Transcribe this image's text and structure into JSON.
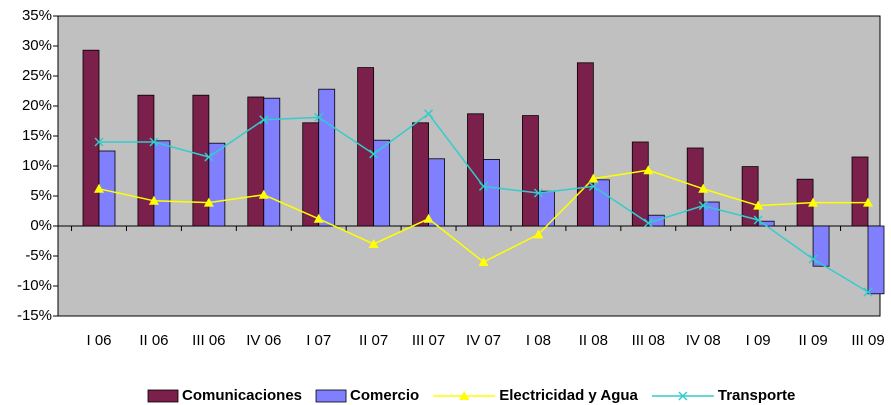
{
  "chart_data": {
    "type": "bar_line",
    "categories": [
      "I 06",
      "II 06",
      "III 06",
      "IV 06",
      "I 07",
      "II 07",
      "III 07",
      "IV 07",
      "I 08",
      "II 08",
      "III 08",
      "IV 08",
      "I 09",
      "II 09",
      "III 09"
    ],
    "series": [
      {
        "name": "Comunicaciones",
        "type": "bar",
        "color": "#7b1f4b",
        "values": [
          29.3,
          21.8,
          21.8,
          21.5,
          17.2,
          26.4,
          17.2,
          18.7,
          18.4,
          27.2,
          14.0,
          13.0,
          9.9,
          7.8,
          11.5
        ]
      },
      {
        "name": "Comercio",
        "type": "bar",
        "color": "#8080ff",
        "values": [
          12.5,
          14.2,
          13.8,
          21.3,
          22.8,
          14.3,
          11.2,
          11.1,
          5.8,
          7.7,
          1.8,
          4.0,
          0.8,
          -6.7,
          -11.3
        ]
      },
      {
        "name": "Electricidad y Agua",
        "type": "line",
        "marker": "triangle",
        "color": "#ffff00",
        "values": [
          6.2,
          4.2,
          3.9,
          5.2,
          1.2,
          -3.0,
          1.2,
          -6.0,
          -1.4,
          7.9,
          9.3,
          6.2,
          3.4,
          3.9,
          3.9
        ]
      },
      {
        "name": "Transporte",
        "type": "line",
        "marker": "x",
        "color": "#33cccc",
        "values": [
          14.0,
          14.0,
          11.5,
          17.7,
          18.1,
          12.0,
          18.7,
          6.6,
          5.5,
          6.6,
          0.5,
          3.4,
          1.0,
          -5.5,
          -11.0
        ]
      }
    ],
    "ylim": [
      -15,
      35
    ],
    "yticks": [
      {
        "value": -15,
        "label": "-15%"
      },
      {
        "value": -10,
        "label": "-10%"
      },
      {
        "value": -5,
        "label": "-5%"
      },
      {
        "value": 0,
        "label": "0%"
      },
      {
        "value": 5,
        "label": "5%"
      },
      {
        "value": 10,
        "label": "10%"
      },
      {
        "value": 15,
        "label": "15%"
      },
      {
        "value": 20,
        "label": "20%"
      },
      {
        "value": 25,
        "label": "25%"
      },
      {
        "value": 30,
        "label": "30%"
      },
      {
        "value": 35,
        "label": "35%"
      }
    ],
    "grid": false,
    "legend": "bottom"
  }
}
